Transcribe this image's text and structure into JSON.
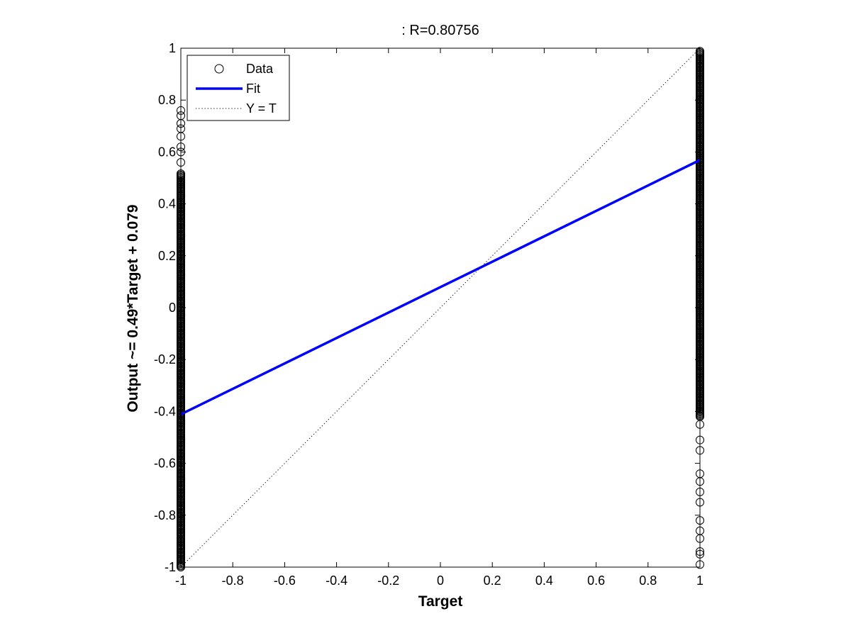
{
  "chart_data": {
    "type": "scatter",
    "title": ": R=0.80756",
    "xlabel": "Target",
    "ylabel": "Output ~= 0.49*Target + 0.079",
    "xlim": [
      -1,
      1
    ],
    "ylim": [
      -1,
      1
    ],
    "x_ticks": [
      "-1",
      "-0.8",
      "-0.6",
      "-0.4",
      "-0.2",
      "0",
      "0.2",
      "0.4",
      "0.6",
      "0.8",
      "1"
    ],
    "y_ticks": [
      "-1",
      "-0.8",
      "-0.6",
      "-0.4",
      "-0.2",
      "0",
      "0.2",
      "0.4",
      "0.6",
      "0.8",
      "1"
    ],
    "grid": false,
    "legend_position": "top-left",
    "legend": [
      {
        "label": "Data",
        "style": "circle-marker",
        "color": "#000000"
      },
      {
        "label": "Fit",
        "style": "solid-line",
        "color": "#0000ff"
      },
      {
        "label": "Y = T",
        "style": "dotted-line",
        "color": "#000000"
      }
    ],
    "fit": {
      "slope": 0.49,
      "intercept": 0.079,
      "color": "#0000ff"
    },
    "identity_line": {
      "slope": 1,
      "intercept": 0
    },
    "data_groups": [
      {
        "x": -1,
        "dense_range": [
          -1.0,
          0.52
        ],
        "sparse_points": [
          0.56,
          0.6,
          0.62,
          0.66,
          0.69,
          0.71,
          0.74,
          0.76
        ]
      },
      {
        "x": 1,
        "dense_range": [
          -0.42,
          0.99
        ],
        "sparse_points": [
          -0.45,
          -0.51,
          -0.55,
          -0.64,
          -0.67,
          -0.71,
          -0.75,
          -0.82,
          -0.86,
          -0.89,
          -0.94,
          -0.95,
          -0.99
        ]
      }
    ]
  }
}
